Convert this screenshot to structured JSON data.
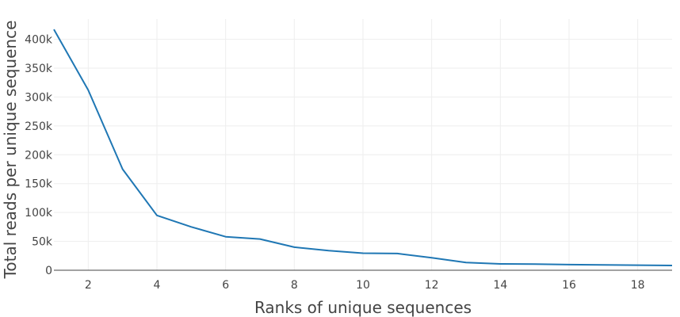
{
  "chart_data": {
    "type": "line",
    "title": "",
    "xlabel": "Ranks of unique sequences",
    "ylabel": "Total reads per unique sequence",
    "xlim": [
      1,
      19
    ],
    "ylim": [
      0,
      435000
    ],
    "grid": true,
    "legend": "none",
    "x_ticks": [
      2,
      4,
      6,
      8,
      10,
      12,
      14,
      16,
      18
    ],
    "x_tick_labels": [
      "2",
      "4",
      "6",
      "8",
      "10",
      "12",
      "14",
      "16",
      "18"
    ],
    "y_ticks": [
      0,
      50000,
      100000,
      150000,
      200000,
      250000,
      300000,
      350000,
      400000
    ],
    "y_tick_labels": [
      "0",
      "50k",
      "100k",
      "150k",
      "200k",
      "250k",
      "300k",
      "350k",
      "400k"
    ],
    "series": [
      {
        "color": "#1f77b4",
        "x": [
          1,
          2,
          3,
          4,
          5,
          6,
          7,
          8,
          9,
          10,
          11,
          12,
          13,
          14,
          15,
          16,
          17,
          18,
          19
        ],
        "values": [
          417000,
          312000,
          175000,
          95000,
          75000,
          58000,
          54000,
          40000,
          34000,
          29500,
          29000,
          21500,
          13500,
          11000,
          10500,
          9800,
          9300,
          8800,
          8300
        ]
      }
    ]
  }
}
